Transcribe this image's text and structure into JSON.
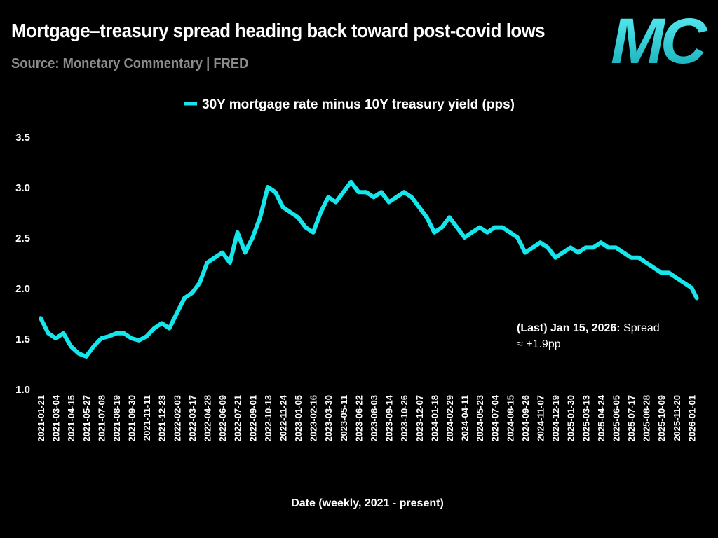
{
  "header": {
    "title": "Mortgage–treasury spread heading back toward post-covid lows",
    "subtitle": "Source: Monetary Commentary | FRED",
    "logo_text": "MC"
  },
  "colors": {
    "background": "#000000",
    "series": "#14e6ec",
    "logo": "#1ad0d8",
    "subtitle": "#8c8c8c"
  },
  "annotation": {
    "date_label": "(Last) Jan 15, 2026:",
    "text_line1": "Spread",
    "text_line2": "≈ +1.9pp"
  },
  "chart_data": {
    "type": "line",
    "xlabel": "Date (weekly, 2021 - present)",
    "ylabel": "",
    "ylim": [
      1.0,
      3.5
    ],
    "yticks": [
      "1.0",
      "1.5",
      "2.0",
      "2.5",
      "3.0",
      "3.5"
    ],
    "grid": false,
    "legend_position": "top-center",
    "xticks": [
      "2021-01-21",
      "2021-03-04",
      "2021-04-15",
      "2021-05-27",
      "2021-07-08",
      "2021-08-19",
      "2021-09-30",
      "2021-11-11",
      "2021-12-23",
      "2022-02-03",
      "2022-03-17",
      "2022-04-28",
      "2022-06-09",
      "2022-07-21",
      "2022-09-01",
      "2022-10-13",
      "2022-11-24",
      "2023-01-05",
      "2023-02-16",
      "2023-03-30",
      "2023-05-11",
      "2023-06-22",
      "2023-08-03",
      "2023-09-14",
      "2023-10-26",
      "2023-12-07",
      "2024-01-18",
      "2024-02-29",
      "2024-04-11",
      "2024-05-23",
      "2024-07-04",
      "2024-08-15",
      "2024-09-26",
      "2024-11-07",
      "2024-12-19",
      "2025-01-30",
      "2025-03-13",
      "2025-04-24",
      "2025-06-05",
      "2025-07-17",
      "2025-08-28",
      "2025-10-09",
      "2025-11-20",
      "2026-01-01"
    ],
    "series": [
      {
        "name": "30Y mortgage rate minus 10Y treasury yield (pps)",
        "x": [
          "2021-01-21",
          "2021-02-11",
          "2021-03-04",
          "2021-03-25",
          "2021-04-15",
          "2021-05-06",
          "2021-05-27",
          "2021-06-17",
          "2021-07-08",
          "2021-07-29",
          "2021-08-19",
          "2021-09-09",
          "2021-09-30",
          "2021-10-21",
          "2021-11-11",
          "2021-12-02",
          "2021-12-23",
          "2022-01-13",
          "2022-02-03",
          "2022-02-24",
          "2022-03-17",
          "2022-04-07",
          "2022-04-28",
          "2022-05-19",
          "2022-06-09",
          "2022-06-30",
          "2022-07-21",
          "2022-08-11",
          "2022-09-01",
          "2022-09-22",
          "2022-10-13",
          "2022-11-03",
          "2022-11-24",
          "2022-12-15",
          "2023-01-05",
          "2023-01-26",
          "2023-02-16",
          "2023-03-09",
          "2023-03-30",
          "2023-04-20",
          "2023-05-11",
          "2023-06-01",
          "2023-06-22",
          "2023-07-13",
          "2023-08-03",
          "2023-08-24",
          "2023-09-14",
          "2023-10-05",
          "2023-10-26",
          "2023-11-16",
          "2023-12-07",
          "2023-12-28",
          "2024-01-18",
          "2024-02-08",
          "2024-02-29",
          "2024-03-21",
          "2024-04-11",
          "2024-05-02",
          "2024-05-23",
          "2024-06-13",
          "2024-07-04",
          "2024-07-25",
          "2024-08-15",
          "2024-09-05",
          "2024-09-26",
          "2024-10-17",
          "2024-11-07",
          "2024-11-28",
          "2024-12-19",
          "2025-01-09",
          "2025-01-30",
          "2025-02-20",
          "2025-03-13",
          "2025-04-03",
          "2025-04-24",
          "2025-05-15",
          "2025-06-05",
          "2025-06-26",
          "2025-07-17",
          "2025-08-07",
          "2025-08-28",
          "2025-09-18",
          "2025-10-09",
          "2025-10-30",
          "2025-11-20",
          "2025-12-11",
          "2026-01-01",
          "2026-01-15"
        ],
        "values": [
          1.7,
          1.55,
          1.5,
          1.55,
          1.42,
          1.35,
          1.32,
          1.42,
          1.5,
          1.52,
          1.55,
          1.55,
          1.5,
          1.48,
          1.52,
          1.6,
          1.65,
          1.6,
          1.75,
          1.9,
          1.95,
          2.05,
          2.25,
          2.3,
          2.35,
          2.25,
          2.55,
          2.35,
          2.5,
          2.7,
          3.0,
          2.95,
          2.8,
          2.75,
          2.7,
          2.6,
          2.55,
          2.75,
          2.9,
          2.85,
          2.95,
          3.05,
          2.95,
          2.95,
          2.9,
          2.95,
          2.85,
          2.9,
          2.95,
          2.9,
          2.8,
          2.7,
          2.55,
          2.6,
          2.7,
          2.6,
          2.5,
          2.55,
          2.6,
          2.55,
          2.6,
          2.6,
          2.55,
          2.5,
          2.35,
          2.4,
          2.45,
          2.4,
          2.3,
          2.35,
          2.4,
          2.35,
          2.4,
          2.4,
          2.45,
          2.4,
          2.4,
          2.35,
          2.3,
          2.3,
          2.25,
          2.2,
          2.15,
          2.15,
          2.1,
          2.05,
          2.0,
          1.9
        ]
      }
    ]
  }
}
